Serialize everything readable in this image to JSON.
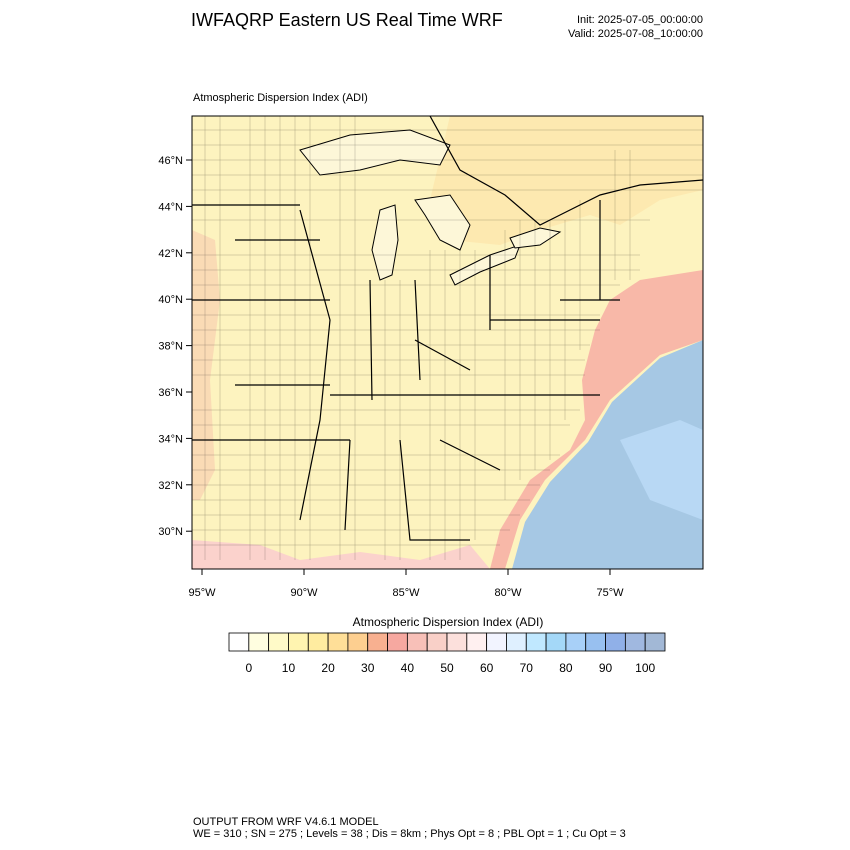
{
  "header": {
    "title": "IWFAQRP Eastern US Real Time WRF",
    "init": "Init: 2025-07-05_00:00:00",
    "valid": "Valid: 2025-07-08_10:00:00"
  },
  "map": {
    "subtitle": "Atmospheric Dispersion Index   (ADI)",
    "lat_labels": [
      "46°N",
      "44°N",
      "42°N",
      "40°N",
      "38°N",
      "36°N",
      "34°N",
      "32°N",
      "30°N"
    ],
    "lon_labels": [
      "95°W",
      "90°W",
      "85°W",
      "80°W",
      "75°W"
    ]
  },
  "colorbar": {
    "title": "Atmospheric Dispersion Index  (ADI)",
    "lim": [
      -5,
      105
    ],
    "ticks": [
      0,
      10,
      20,
      30,
      40,
      50,
      60,
      70,
      80,
      90,
      100
    ],
    "colors": [
      "#ffffff",
      "#fffee0",
      "#fffac8",
      "#fff4b0",
      "#ffeca0",
      "#ffdf98",
      "#fdcf90",
      "#f8b090",
      "#f6a8a0",
      "#f8c0b8",
      "#f9d0c8",
      "#fce0dc",
      "#fff0f0",
      "#f2f4ff",
      "#dff0ff",
      "#c0e8ff",
      "#a4d8f8",
      "#a8d0f8",
      "#98c0f0",
      "#90b0e8",
      "#a0b8e0",
      "#a2b8d6"
    ]
  },
  "footer": {
    "line1": "OUTPUT FROM WRF V4.6.1 MODEL",
    "line2": "WE = 310 ; SN = 275 ; Levels = 38 ; Dis = 8km ; Phys Opt = 8 ; PBL Opt = 1 ; Cu Opt = 3"
  }
}
